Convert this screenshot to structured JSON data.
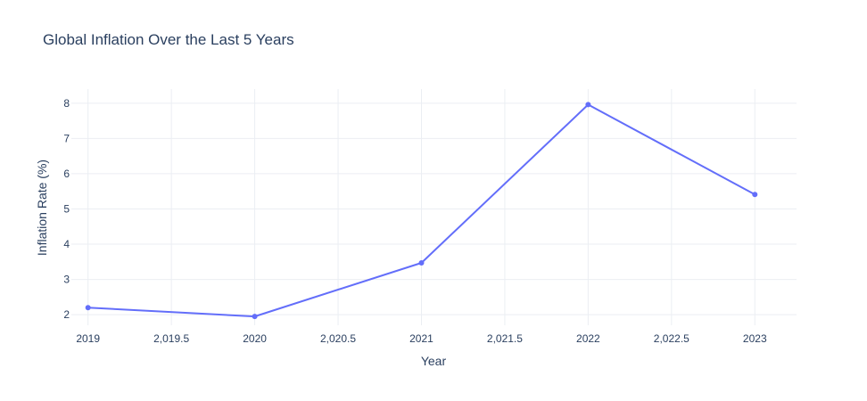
{
  "chart_data": {
    "type": "line",
    "title": "Global Inflation Over the Last 5 Years",
    "xlabel": "Year",
    "ylabel": "Inflation Rate (%)",
    "x": [
      2019,
      2020,
      2021,
      2022,
      2023
    ],
    "series": [
      {
        "values": [
          2.2,
          1.95,
          3.47,
          7.96,
          5.41
        ]
      }
    ],
    "xlim": [
      2018.9,
      2023.25
    ],
    "ylim": [
      1.7,
      8.4
    ],
    "xticks": [
      2019,
      2019.5,
      2020,
      2020.5,
      2021,
      2021.5,
      2022,
      2022.5,
      2023
    ],
    "xtick_labels": [
      "2019",
      "2,019.5",
      "2020",
      "2,020.5",
      "2021",
      "2,021.5",
      "2022",
      "2,022.5",
      "2023"
    ],
    "yticks": [
      2,
      3,
      4,
      5,
      6,
      7,
      8
    ],
    "ytick_labels": [
      "2",
      "3",
      "4",
      "5",
      "6",
      "7",
      "8"
    ],
    "grid": true,
    "legend": false,
    "colors": {
      "line": "#636efa",
      "grid": "#ebeef3",
      "text": "#2a3f5f"
    }
  }
}
